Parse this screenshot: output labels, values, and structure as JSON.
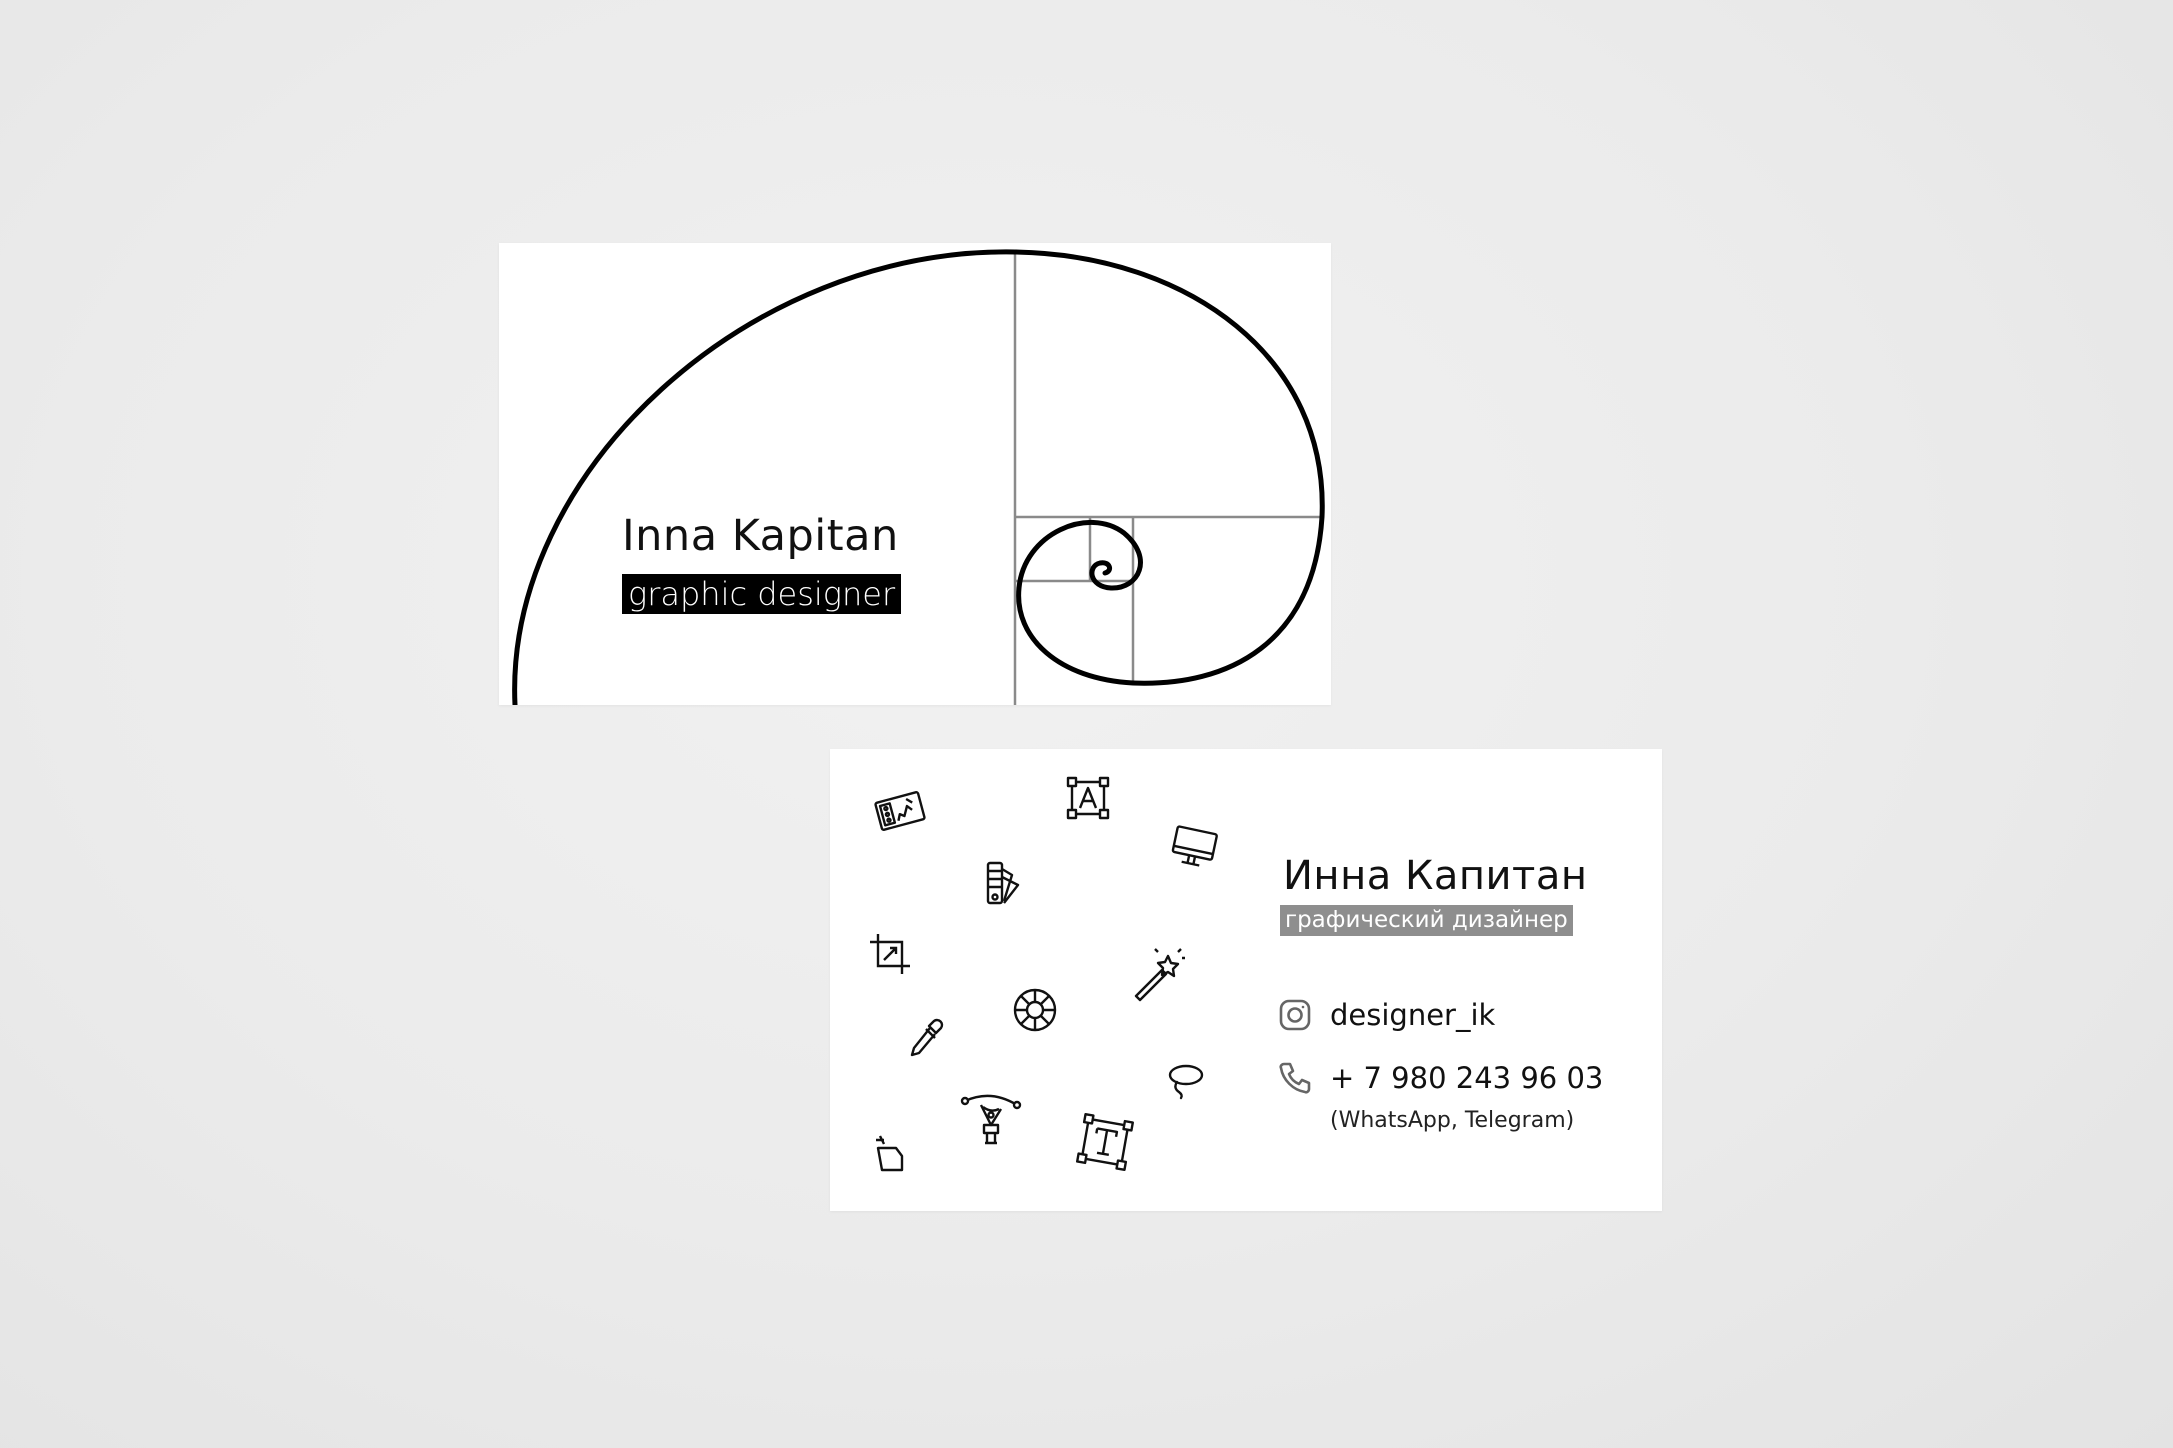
{
  "front_card": {
    "name": "Inna Kapitan",
    "title": "graphic designer"
  },
  "back_card": {
    "name": "Инна Капитан",
    "title": "графический дизайнер",
    "instagram": {
      "icon": "instagram-icon",
      "handle": "designer_ik"
    },
    "phone": {
      "icon": "phone-icon",
      "number": "+ 7 980 243 96 03",
      "note": "(WhatsApp, Telegram)"
    },
    "decorative_icons": [
      "drawing-tablet-icon",
      "font-frame-icon",
      "monitor-icon",
      "color-swatch-icon",
      "crop-icon",
      "magic-wand-icon",
      "color-wheel-icon",
      "eyedropper-icon",
      "lasso-icon",
      "pen-tool-icon",
      "paint-bucket-icon",
      "text-tool-icon"
    ]
  },
  "colors": {
    "background": "#ebebeb",
    "card": "#ffffff",
    "front_title_bg": "#000000",
    "back_title_bg": "#8e8e8e",
    "spiral_guides": "#8a8a8a"
  }
}
